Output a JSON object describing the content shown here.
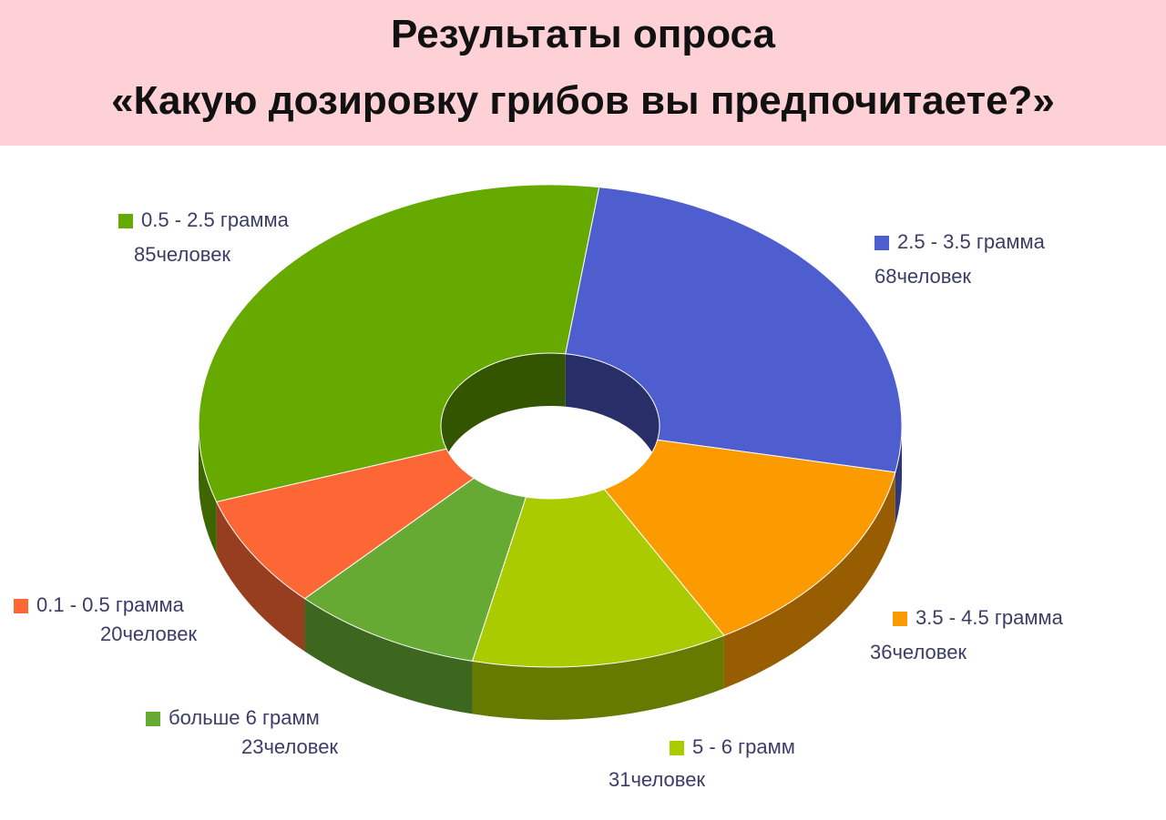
{
  "chart_data": {
    "type": "donut3d",
    "title": "Результаты опроса",
    "subtitle": "«Какую дозировку грибов вы предпочитаете?»",
    "categories": [
      "2.5 - 3.5 грамма",
      "3.5 - 4.5 грамма",
      "5 - 6 грамм",
      "больше 6 грамм",
      "0.1 - 0.5 грамма",
      "0.5 - 2.5 грамма"
    ],
    "values": [
      68,
      36,
      31,
      23,
      20,
      85
    ],
    "value_labels": [
      "68человек",
      "36человек",
      "31человек",
      "23человек",
      "20человек",
      "85человек"
    ],
    "colors": [
      "#4f5ecf",
      "#fb9b00",
      "#aacb00",
      "#66aa33",
      "#fd6735",
      "#66aa00"
    ]
  }
}
